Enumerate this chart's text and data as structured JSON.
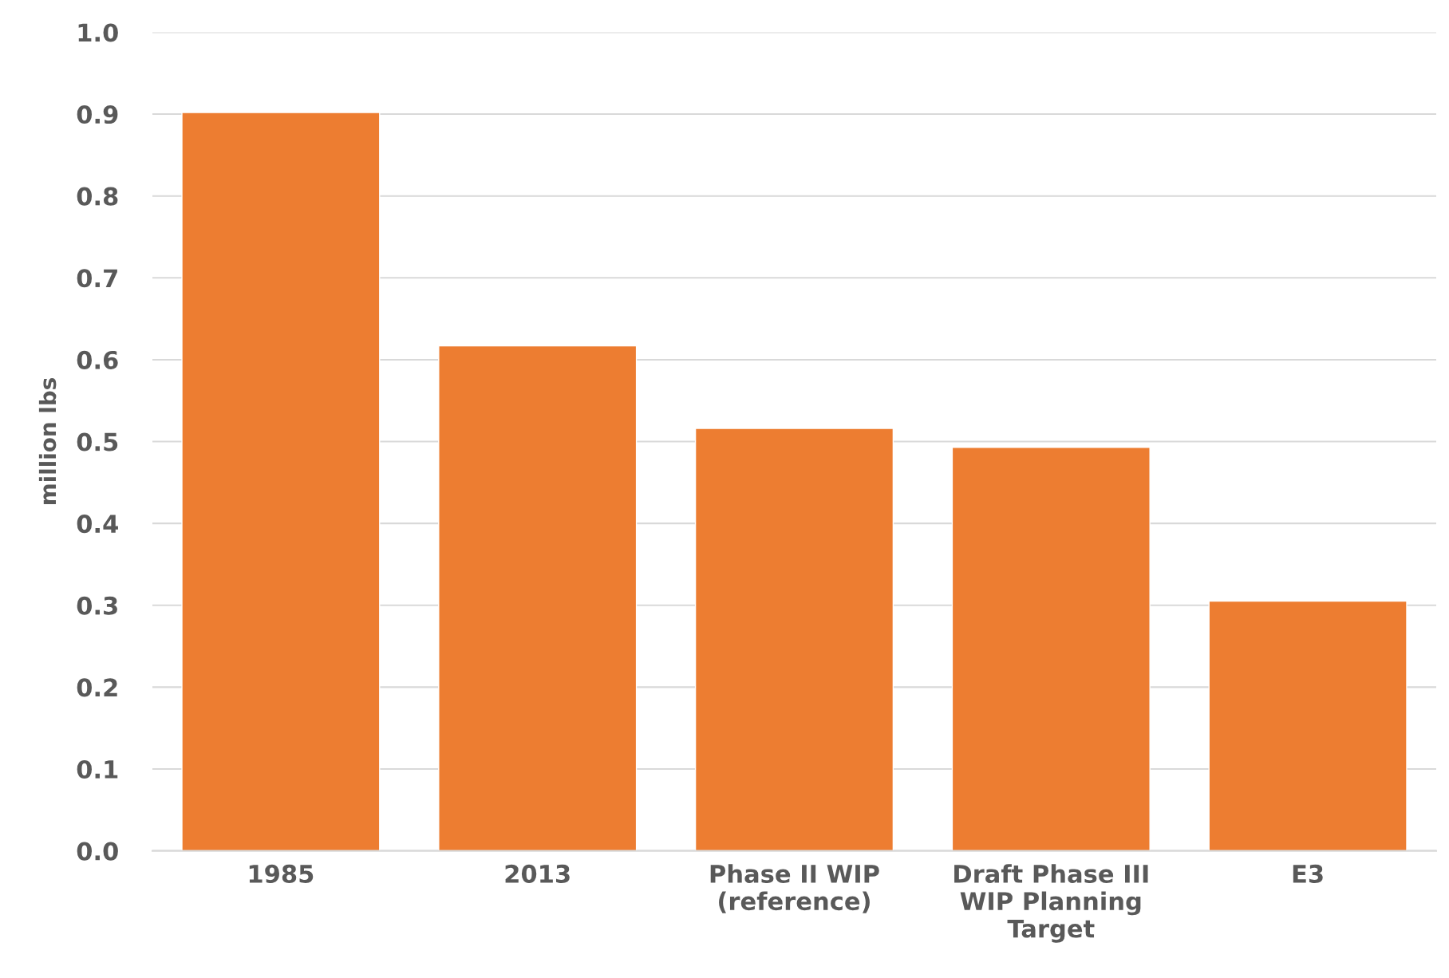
{
  "chart_data": {
    "type": "bar",
    "ylabel": "million lbs",
    "categories": [
      "1985",
      "2013",
      "Phase II WIP\n(reference)",
      "Draft Phase III\nWIP Planning\nTarget",
      "E3"
    ],
    "values": [
      0.902,
      0.617,
      0.516,
      0.493,
      0.305
    ],
    "color": "#ed7d31",
    "ylim": [
      0,
      1.0
    ],
    "yticks": [
      {
        "value": 0,
        "label": "0.0"
      },
      0.1,
      0.2,
      0.3,
      0.4,
      0.5,
      0.6,
      0.7,
      0.8,
      0.9,
      {
        "value": 1.0,
        "label": "1.0"
      }
    ],
    "grid": "y"
  }
}
